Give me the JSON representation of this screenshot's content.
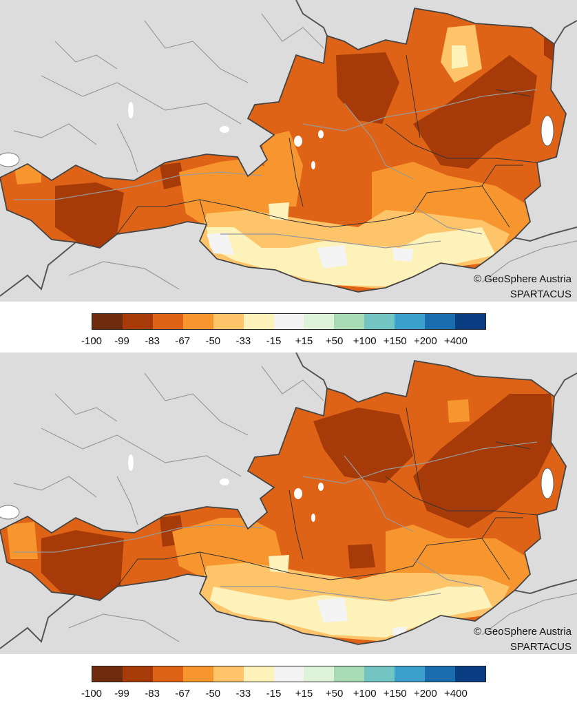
{
  "credit": {
    "copyright": "© GeoSphere Austria",
    "dataset": "SPARTACUS"
  },
  "legend": {
    "colors": [
      "#6e2a0c",
      "#a63b09",
      "#de6316",
      "#f7962f",
      "#fdc469",
      "#fef2bb",
      "#f4f4f4",
      "#dff2da",
      "#a9dcb4",
      "#72c5c3",
      "#3ba0cc",
      "#1a6eb0",
      "#0a3d82"
    ],
    "labels": [
      "-100",
      "-99",
      "-83",
      "-67",
      "-50",
      "-33",
      "-15",
      "+15",
      "+50",
      "+100",
      "+150",
      "+200",
      "+400"
    ]
  },
  "maps": [
    {
      "name": "map-top"
    },
    {
      "name": "map-bottom"
    }
  ]
}
